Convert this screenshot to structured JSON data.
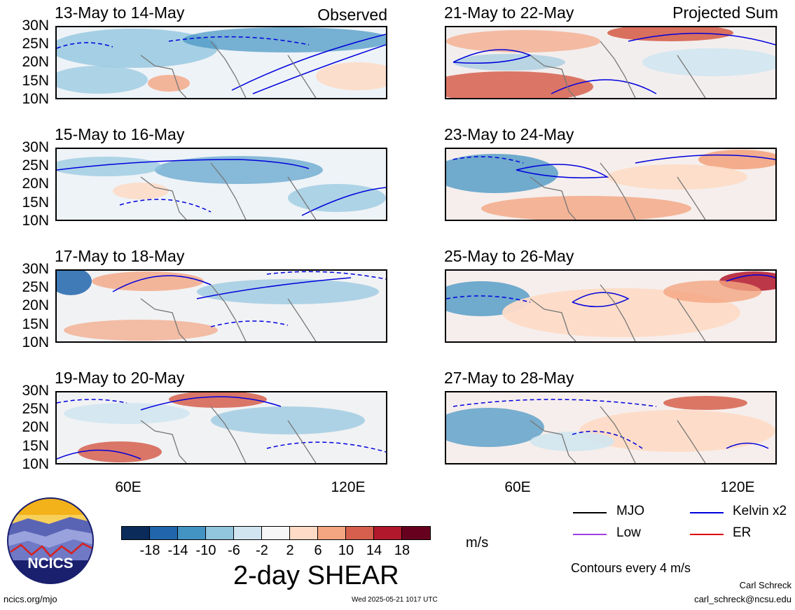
{
  "panels": [
    {
      "title": "13-May to 14-May",
      "corner": "Observed"
    },
    {
      "title": "21-May to 22-May",
      "corner": "Projected Sum"
    },
    {
      "title": "15-May to 16-May",
      "corner": ""
    },
    {
      "title": "23-May to 24-May",
      "corner": ""
    },
    {
      "title": "17-May to 18-May",
      "corner": ""
    },
    {
      "title": "25-May to 26-May",
      "corner": ""
    },
    {
      "title": "19-May to 20-May",
      "corner": ""
    },
    {
      "title": "27-May to 28-May",
      "corner": ""
    }
  ],
  "lat_ticks": [
    "30N",
    "25N",
    "20N",
    "15N",
    "10N"
  ],
  "lon_ticks": [
    "60E",
    "120E"
  ],
  "colorbar": {
    "ticks": [
      "-18",
      "-14",
      "-10",
      "-6",
      "-2",
      "2",
      "6",
      "10",
      "14",
      "18"
    ],
    "colors": [
      "#0b2c5b",
      "#2166ac",
      "#4393c3",
      "#92c5de",
      "#d1e5f0",
      "#f7f7f7",
      "#fddbc7",
      "#f4a582",
      "#d6604d",
      "#b2182b",
      "#67001f"
    ],
    "units": "m/s",
    "title": "2-day SHEAR"
  },
  "legend": {
    "items": [
      {
        "label": "MJO",
        "color": "#000000"
      },
      {
        "label": "Kelvin x2",
        "color": "#0000dd"
      },
      {
        "label": "Low",
        "color": "#a040e0"
      },
      {
        "label": "ER",
        "color": "#dd0000"
      }
    ],
    "note": "Contours every 4 m/s"
  },
  "logo": {
    "text": "NCICS"
  },
  "footer": {
    "url": "ncics.org/mjo",
    "timestamp": "Wed 2025-05-21 1017 UTC",
    "author": "Carl Schreck",
    "email": "carl_schreck@ncsu.edu"
  }
}
